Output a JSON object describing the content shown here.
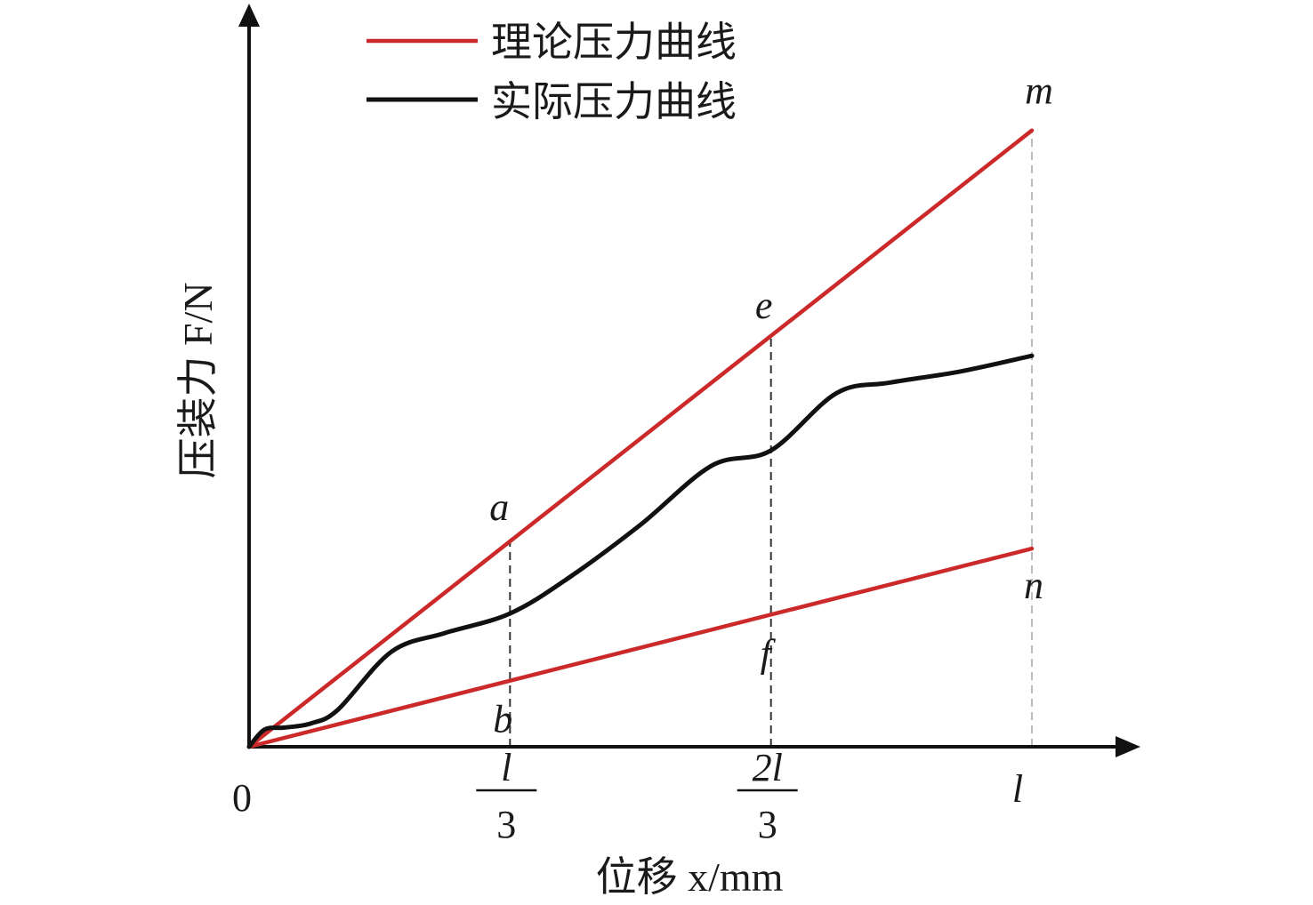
{
  "chart_data": {
    "type": "line",
    "xlabel": "位移 x/mm",
    "ylabel": "压装力 F/N",
    "origin_label": "0",
    "x_ticks": [
      {
        "num": "l",
        "den": "3",
        "x": 0.3333
      },
      {
        "num": "2l",
        "den": "3",
        "x": 0.6667
      },
      {
        "single": "l",
        "x": 1.0
      }
    ],
    "xlim": [
      0,
      1.0
    ],
    "ylim": [
      0,
      0.83
    ],
    "grid": false,
    "legend_position": "top",
    "series": [
      {
        "name": "理论压力曲线",
        "color": "#cc2a2a",
        "x": [
          0,
          1.0
        ],
        "y": [
          0,
          0.7878
        ]
      },
      {
        "name": "理论压力曲线",
        "color": "#cc2a2a",
        "x": [
          0,
          1.0
        ],
        "y": [
          0,
          0.2533
        ]
      },
      {
        "name": "实际压力曲线",
        "color": "#111111",
        "x": [
          0,
          0.02,
          0.0455,
          0.0795,
          0.1136,
          0.1818,
          0.25,
          0.3333,
          0.4091,
          0.5,
          0.5909,
          0.6667,
          0.75,
          0.8182,
          0.9091,
          1.0
        ],
        "y": [
          0,
          0.022,
          0.0245,
          0.03,
          0.0475,
          0.1215,
          0.1453,
          0.1703,
          0.2165,
          0.2838,
          0.3593,
          0.3788,
          0.4518,
          0.4655,
          0.4798,
          0.4998
        ]
      }
    ],
    "annotations": [
      {
        "text": "m",
        "x": 1.0,
        "y": 0.7878
      },
      {
        "text": "n",
        "x": 1.0,
        "y": 0.2533
      },
      {
        "text": "a",
        "x": 0.3333,
        "y": 0.2626
      },
      {
        "text": "b",
        "x": 0.3333,
        "y": 0.0844
      },
      {
        "text": "e",
        "x": 0.6667,
        "y": 0.5252
      },
      {
        "text": "f",
        "x": 0.6667,
        "y": 0.1689
      }
    ],
    "guides": [
      {
        "x": 0.3333,
        "y1": 0,
        "y2": 0.2626
      },
      {
        "x": 0.6667,
        "y1": 0,
        "y2": 0.5252
      },
      {
        "x": 1.0,
        "y1": 0,
        "y2": 0.7878
      }
    ]
  }
}
